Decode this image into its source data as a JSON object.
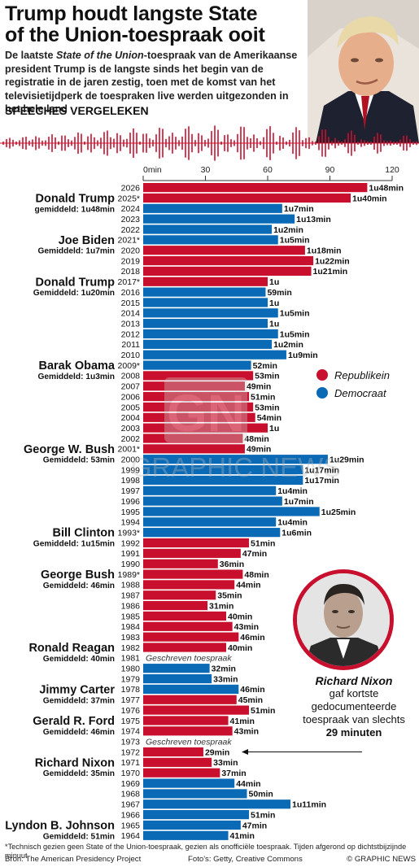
{
  "title": "Trump houdt langste State of the Union-toespraak ooit",
  "intro": {
    "part1": "De laatste ",
    "italic": "State of the Union",
    "part2": "-toespraak van de Amerikaanse president Trump is de langste sinds het begin van de registratie in de jaren zestig, toen met de komst van het televisietijdperk de toespraken live werden uitgezonden in het hele land"
  },
  "section_label": "SPEECHES VERGELEKEN",
  "colors": {
    "republican": "#c8102e",
    "democrat": "#0a6ab6",
    "gray": "#666666"
  },
  "legend": [
    {
      "label": "Republikein",
      "color": "#c8102e"
    },
    {
      "label": "Democraat",
      "color": "#0a6ab6"
    }
  ],
  "chart_data": {
    "type": "bar",
    "orientation": "horizontal",
    "x_unit": "minutes",
    "xlim": [
      0,
      120
    ],
    "ticks": [
      {
        "value": 0,
        "label": "0min"
      },
      {
        "value": 30,
        "label": "30"
      },
      {
        "value": 60,
        "label": "60"
      },
      {
        "value": 90,
        "label": "90"
      },
      {
        "value": 120,
        "label": "120"
      }
    ],
    "bars": [
      {
        "year": "2026",
        "minutes": 108,
        "label": "1u48min",
        "party": "R"
      },
      {
        "year": "2025*",
        "minutes": 100,
        "label": "1u40min",
        "party": "R"
      },
      {
        "year": "2024",
        "minutes": 67,
        "label": "1u7min",
        "party": "D"
      },
      {
        "year": "2023",
        "minutes": 73,
        "label": "1u13min",
        "party": "D"
      },
      {
        "year": "2022",
        "minutes": 62,
        "label": "1u2min",
        "party": "D"
      },
      {
        "year": "2021*",
        "minutes": 65,
        "label": "1u5min",
        "party": "D"
      },
      {
        "year": "2020",
        "minutes": 78,
        "label": "1u18min",
        "party": "R"
      },
      {
        "year": "2019",
        "minutes": 82,
        "label": "1u22min",
        "party": "R"
      },
      {
        "year": "2018",
        "minutes": 81,
        "label": "1u21min",
        "party": "R"
      },
      {
        "year": "2017*",
        "minutes": 60,
        "label": "1u",
        "party": "R"
      },
      {
        "year": "2016",
        "minutes": 59,
        "label": "59min",
        "party": "D"
      },
      {
        "year": "2015",
        "minutes": 60,
        "label": "1u",
        "party": "D"
      },
      {
        "year": "2014",
        "minutes": 65,
        "label": "1u5min",
        "party": "D"
      },
      {
        "year": "2013",
        "minutes": 60,
        "label": "1u",
        "party": "D"
      },
      {
        "year": "2012",
        "minutes": 65,
        "label": "1u5min",
        "party": "D"
      },
      {
        "year": "2011",
        "minutes": 62,
        "label": "1u2min",
        "party": "D"
      },
      {
        "year": "2010",
        "minutes": 69,
        "label": "1u9min",
        "party": "D"
      },
      {
        "year": "2009*",
        "minutes": 52,
        "label": "52min",
        "party": "D"
      },
      {
        "year": "2008",
        "minutes": 53,
        "label": "53min",
        "party": "R"
      },
      {
        "year": "2007",
        "minutes": 49,
        "label": "49min",
        "party": "R"
      },
      {
        "year": "2006",
        "minutes": 51,
        "label": "51min",
        "party": "R"
      },
      {
        "year": "2005",
        "minutes": 53,
        "label": "53min",
        "party": "R"
      },
      {
        "year": "2004",
        "minutes": 54,
        "label": "54min",
        "party": "R"
      },
      {
        "year": "2003",
        "minutes": 60,
        "label": "1u",
        "party": "R"
      },
      {
        "year": "2002",
        "minutes": 48,
        "label": "48min",
        "party": "R"
      },
      {
        "year": "2001*",
        "minutes": 49,
        "label": "49min",
        "party": "R"
      },
      {
        "year": "2000",
        "minutes": 89,
        "label": "1u29min",
        "party": "D"
      },
      {
        "year": "1999",
        "minutes": 77,
        "label": "1u17min",
        "party": "D"
      },
      {
        "year": "1998",
        "minutes": 77,
        "label": "1u17min",
        "party": "D"
      },
      {
        "year": "1997",
        "minutes": 64,
        "label": "1u4min",
        "party": "D"
      },
      {
        "year": "1996",
        "minutes": 67,
        "label": "1u7min",
        "party": "D"
      },
      {
        "year": "1995",
        "minutes": 85,
        "label": "1u25min",
        "party": "D"
      },
      {
        "year": "1994",
        "minutes": 64,
        "label": "1u4min",
        "party": "D"
      },
      {
        "year": "1993*",
        "minutes": 66,
        "label": "1u6min",
        "party": "D"
      },
      {
        "year": "1992",
        "minutes": 51,
        "label": "51min",
        "party": "R"
      },
      {
        "year": "1991",
        "minutes": 47,
        "label": "47min",
        "party": "R"
      },
      {
        "year": "1990",
        "minutes": 36,
        "label": "36min",
        "party": "R"
      },
      {
        "year": "1989*",
        "minutes": 48,
        "label": "48min",
        "party": "R"
      },
      {
        "year": "1988",
        "minutes": 44,
        "label": "44min",
        "party": "R"
      },
      {
        "year": "1987",
        "minutes": 35,
        "label": "35min",
        "party": "R"
      },
      {
        "year": "1986",
        "minutes": 31,
        "label": "31min",
        "party": "R"
      },
      {
        "year": "1985",
        "minutes": 40,
        "label": "40min",
        "party": "R"
      },
      {
        "year": "1984",
        "minutes": 43,
        "label": "43min",
        "party": "R"
      },
      {
        "year": "1983",
        "minutes": 46,
        "label": "46min",
        "party": "R"
      },
      {
        "year": "1982",
        "minutes": 40,
        "label": "40min",
        "party": "R"
      },
      {
        "year": "1981",
        "minutes": null,
        "label": "Geschreven toespraak",
        "party": "R"
      },
      {
        "year": "1980",
        "minutes": 32,
        "label": "32min",
        "party": "D"
      },
      {
        "year": "1979",
        "minutes": 33,
        "label": "33min",
        "party": "D"
      },
      {
        "year": "1978",
        "minutes": 46,
        "label": "46min",
        "party": "D"
      },
      {
        "year": "1977",
        "minutes": 45,
        "label": "45min",
        "party": "R"
      },
      {
        "year": "1976",
        "minutes": 51,
        "label": "51min",
        "party": "R"
      },
      {
        "year": "1975",
        "minutes": 41,
        "label": "41min",
        "party": "R"
      },
      {
        "year": "1974",
        "minutes": 43,
        "label": "43min",
        "party": "R"
      },
      {
        "year": "1973",
        "minutes": null,
        "label": "Geschreven toespraak",
        "party": "R"
      },
      {
        "year": "1972",
        "minutes": 29,
        "label": "29min",
        "party": "R"
      },
      {
        "year": "1971",
        "minutes": 33,
        "label": "33min",
        "party": "R"
      },
      {
        "year": "1970",
        "minutes": 37,
        "label": "37min",
        "party": "R"
      },
      {
        "year": "1969",
        "minutes": 44,
        "label": "44min",
        "party": "D"
      },
      {
        "year": "1968",
        "minutes": 50,
        "label": "50min",
        "party": "D"
      },
      {
        "year": "1967",
        "minutes": 71,
        "label": "1u11min",
        "party": "D"
      },
      {
        "year": "1966",
        "minutes": 51,
        "label": "51min",
        "party": "D"
      },
      {
        "year": "1965",
        "minutes": 47,
        "label": "47min",
        "party": "D"
      },
      {
        "year": "1964",
        "minutes": 41,
        "label": "41min",
        "party": "D"
      }
    ],
    "presidents": [
      {
        "name": "Donald Trump",
        "avg": "gemiddeld: 1u48min",
        "name_year": "2025*",
        "avg_year": "2024"
      },
      {
        "name": "Joe Biden",
        "avg": "Gemiddeld: 1u7min",
        "name_year": "2021*",
        "avg_year": "2020"
      },
      {
        "name": "Donald Trump",
        "avg": "Gemiddeld: 1u20min",
        "name_year": "2017*",
        "avg_year": "2016"
      },
      {
        "name": "Barak Obama",
        "avg": "Gemiddeld: 1u3min",
        "name_year": "2009*",
        "avg_year": "2008"
      },
      {
        "name": "George W. Bush",
        "avg": "Gemiddeld: 53min",
        "name_year": "2001*",
        "avg_year": "2000"
      },
      {
        "name": "Bill Clinton",
        "avg": "Gemiddeld: 1u15min",
        "name_year": "1993*",
        "avg_year": "1992"
      },
      {
        "name": "George Bush",
        "avg": "Gemiddeld: 46min",
        "name_year": "1989*",
        "avg_year": "1988"
      },
      {
        "name": "Ronald Reagan",
        "avg": "Gemiddeld: 40min",
        "name_year": "1982",
        "avg_year": "1981"
      },
      {
        "name": "Jimmy Carter",
        "avg": "Gemiddeld: 37min",
        "name_year": "1978",
        "avg_year": "1977"
      },
      {
        "name": "Gerald R. Ford",
        "avg": "Gemiddeld: 46min",
        "name_year": "1975",
        "avg_year": "1974"
      },
      {
        "name": "Richard Nixon",
        "avg": "Gemiddeld: 35min",
        "name_year": "1971",
        "avg_year": "1970"
      },
      {
        "name": "Lyndon B. Johnson",
        "avg": "Gemiddeld: 51min",
        "name_year": "1965",
        "avg_year": "1964"
      }
    ]
  },
  "nixon_callout": {
    "name": "Richard Nixon",
    "line1": "gaf kortste",
    "line2": "gedocumenteerde",
    "line3": "toespraak van slechts",
    "emphasis": "29 minuten"
  },
  "watermark": {
    "logo": "GN",
    "text": "GRAPHIC NEWS"
  },
  "footnote": "*Technisch gezien geen State of the Union-toespraak, gezien als onofficiële toespraak. Tijden afgerond op dichtstbijzijnde minuut",
  "footer": {
    "source": "Bron: The American Presidency Project",
    "credits": "Foto's: Getty, Creative Commons",
    "brand": "© GRAPHIC NEWS"
  }
}
